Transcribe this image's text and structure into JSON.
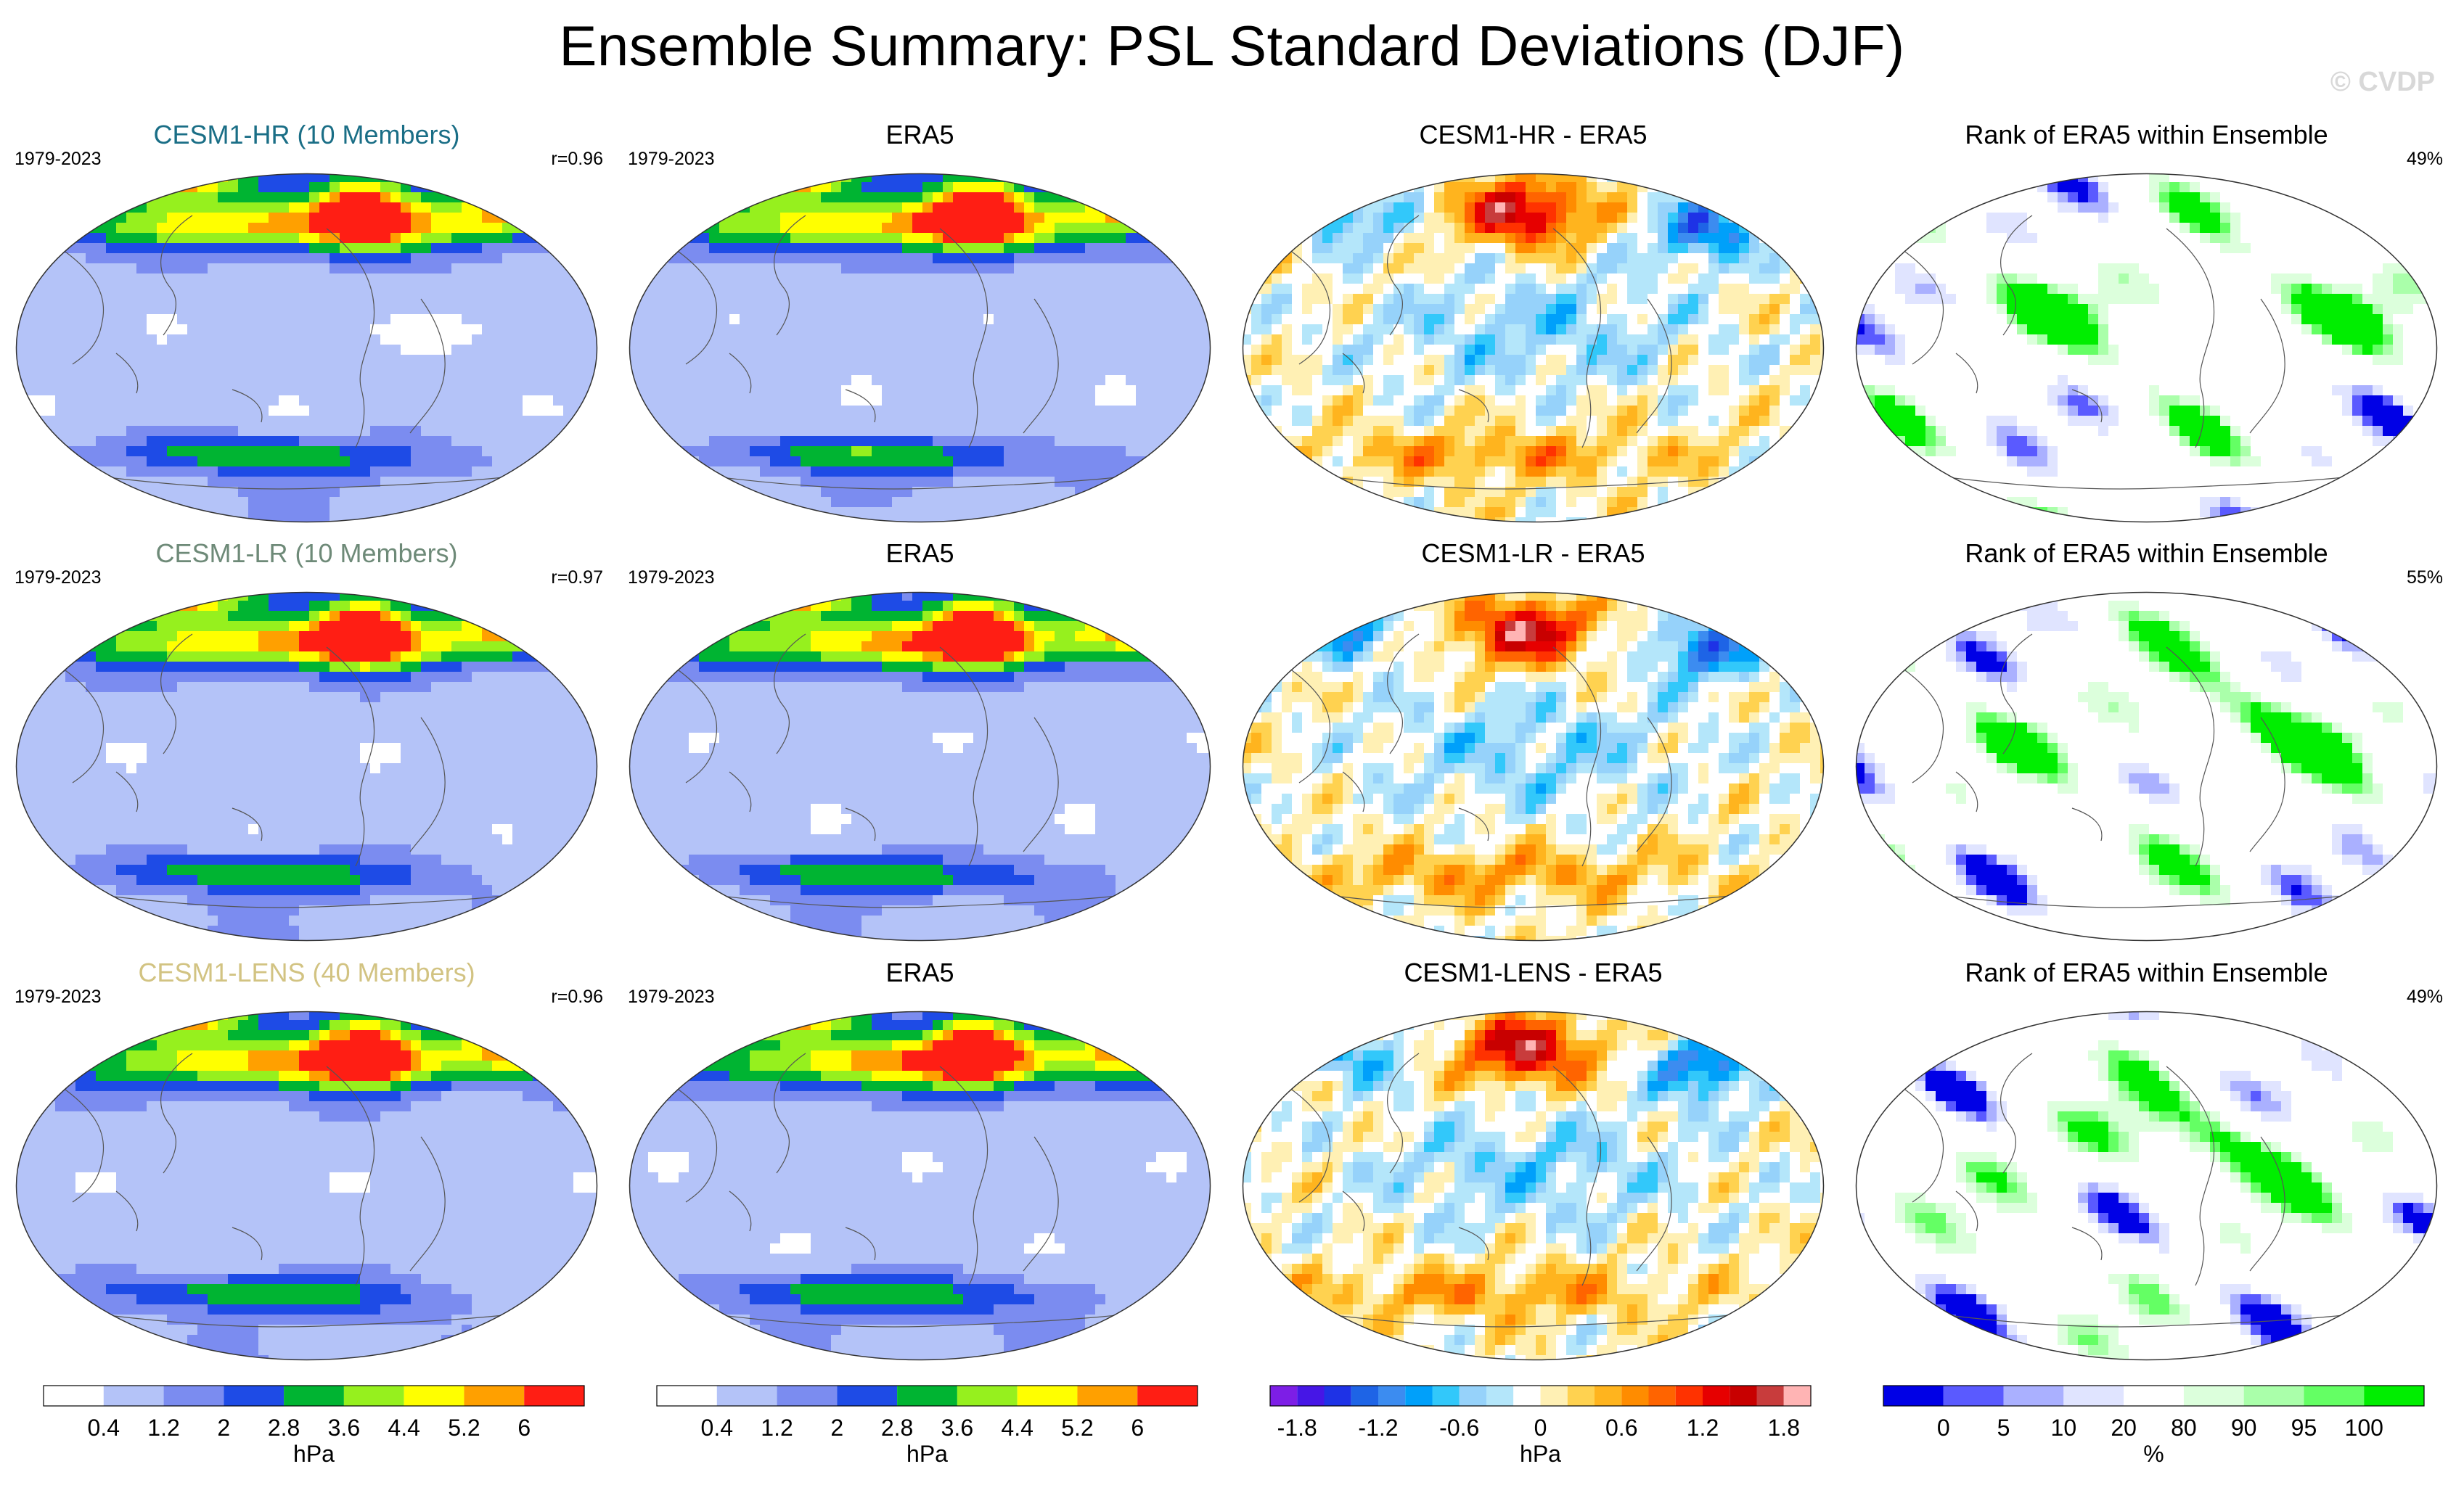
{
  "header": {
    "title": "Ensemble Summary: PSL Standard Deviations (DJF)",
    "watermark": "© CVDP"
  },
  "palettes": {
    "sd": [
      "#ffffff",
      "#b4c3f8",
      "#7b8cf0",
      "#1e4be6",
      "#00b432",
      "#96f01e",
      "#ffff00",
      "#ffa000",
      "#ff1e14"
    ],
    "diff": [
      "#7d1ee6",
      "#4616e6",
      "#1e32e6",
      "#1e64e6",
      "#3c8cf0",
      "#00a0fa",
      "#32c8fa",
      "#96d2fa",
      "#b4e6fa",
      "#ffffff",
      "#fff0b4",
      "#ffd250",
      "#ffb41e",
      "#ff8c00",
      "#ff6400",
      "#ff3200",
      "#e60000",
      "#c80000",
      "#c83c3c",
      "#ffb4b4"
    ],
    "rank": [
      "#0000e6",
      "#5a5aff",
      "#aab0ff",
      "#e0e4ff",
      "#ffffff",
      "#dcffdc",
      "#aaffaa",
      "#64ff64",
      "#00ee00"
    ]
  },
  "rows": [
    {
      "model": {
        "title": "CESM1-HR (10 Members)",
        "title_color": "#1a6e86",
        "period": "1979-2023",
        "stat": "r=0.96"
      },
      "obs": {
        "title": "ERA5",
        "period": "1979-2023"
      },
      "diff": {
        "title": "CESM1-HR - ERA5"
      },
      "rank": {
        "title": "Rank of ERA5 within Ensemble",
        "stat": "49%"
      }
    },
    {
      "model": {
        "title": "CESM1-LR (10 Members)",
        "title_color": "#6e8a78",
        "period": "1979-2023",
        "stat": "r=0.97"
      },
      "obs": {
        "title": "ERA5",
        "period": "1979-2023"
      },
      "diff": {
        "title": "CESM1-LR - ERA5"
      },
      "rank": {
        "title": "Rank of ERA5 within Ensemble",
        "stat": "55%"
      }
    },
    {
      "model": {
        "title": "CESM1-LENS (40 Members)",
        "title_color": "#d2c382",
        "period": "1979-2023",
        "stat": "r=0.96"
      },
      "obs": {
        "title": "ERA5",
        "period": "1979-2023"
      },
      "diff": {
        "title": "CESM1-LENS - ERA5"
      },
      "rank": {
        "title": "Rank of ERA5 within Ensemble",
        "stat": "49%"
      }
    }
  ],
  "colorbars": {
    "sd_model": {
      "ticks": [
        "0.4",
        "1.2",
        "2",
        "2.8",
        "3.6",
        "4.4",
        "5.2",
        "6"
      ],
      "unit": "hPa"
    },
    "sd_obs": {
      "ticks": [
        "0.4",
        "1.2",
        "2",
        "2.8",
        "3.6",
        "4.4",
        "5.2",
        "6"
      ],
      "unit": "hPa"
    },
    "diff": {
      "ticks": [
        "-1.8",
        "-1.2",
        "-0.6",
        "0",
        "0.6",
        "1.2",
        "1.8"
      ],
      "unit": "hPa"
    },
    "rank": {
      "ticks": [
        "0",
        "5",
        "10",
        "20",
        "80",
        "90",
        "95",
        "100"
      ],
      "unit": "%"
    }
  },
  "chart_data": [
    {
      "type": "heatmap",
      "title": "CESM1-HR (10 Members)",
      "period": "1979-2023",
      "pattern_correlation": 0.96,
      "units": "hPa",
      "levels": [
        0.4,
        1.2,
        2,
        2.8,
        3.6,
        4.4,
        5.2,
        6
      ]
    },
    {
      "type": "heatmap",
      "title": "ERA5",
      "period": "1979-2023",
      "units": "hPa",
      "levels": [
        0.4,
        1.2,
        2,
        2.8,
        3.6,
        4.4,
        5.2,
        6
      ]
    },
    {
      "type": "heatmap",
      "title": "CESM1-HR - ERA5",
      "units": "hPa",
      "levels": [
        -1.8,
        -1.2,
        -0.6,
        0,
        0.6,
        1.2,
        1.8
      ]
    },
    {
      "type": "heatmap",
      "title": "Rank of ERA5 within Ensemble",
      "percent_within": 49,
      "units": "%",
      "levels": [
        0,
        5,
        10,
        20,
        80,
        90,
        95,
        100
      ]
    },
    {
      "type": "heatmap",
      "title": "CESM1-LR (10 Members)",
      "period": "1979-2023",
      "pattern_correlation": 0.97,
      "units": "hPa",
      "levels": [
        0.4,
        1.2,
        2,
        2.8,
        3.6,
        4.4,
        5.2,
        6
      ]
    },
    {
      "type": "heatmap",
      "title": "ERA5",
      "period": "1979-2023",
      "units": "hPa",
      "levels": [
        0.4,
        1.2,
        2,
        2.8,
        3.6,
        4.4,
        5.2,
        6
      ]
    },
    {
      "type": "heatmap",
      "title": "CESM1-LR - ERA5",
      "units": "hPa",
      "levels": [
        -1.8,
        -1.2,
        -0.6,
        0,
        0.6,
        1.2,
        1.8
      ]
    },
    {
      "type": "heatmap",
      "title": "Rank of ERA5 within Ensemble",
      "percent_within": 55,
      "units": "%",
      "levels": [
        0,
        5,
        10,
        20,
        80,
        90,
        95,
        100
      ]
    },
    {
      "type": "heatmap",
      "title": "CESM1-LENS (40 Members)",
      "period": "1979-2023",
      "pattern_correlation": 0.96,
      "units": "hPa",
      "levels": [
        0.4,
        1.2,
        2,
        2.8,
        3.6,
        4.4,
        5.2,
        6
      ]
    },
    {
      "type": "heatmap",
      "title": "ERA5",
      "period": "1979-2023",
      "units": "hPa",
      "levels": [
        0.4,
        1.2,
        2,
        2.8,
        3.6,
        4.4,
        5.2,
        6
      ]
    },
    {
      "type": "heatmap",
      "title": "CESM1-LENS - ERA5",
      "units": "hPa",
      "levels": [
        -1.8,
        -1.2,
        -0.6,
        0,
        0.6,
        1.2,
        1.8
      ]
    },
    {
      "type": "heatmap",
      "title": "Rank of ERA5 within Ensemble",
      "percent_within": 49,
      "units": "%",
      "levels": [
        0,
        5,
        10,
        20,
        80,
        90,
        95,
        100
      ]
    }
  ]
}
